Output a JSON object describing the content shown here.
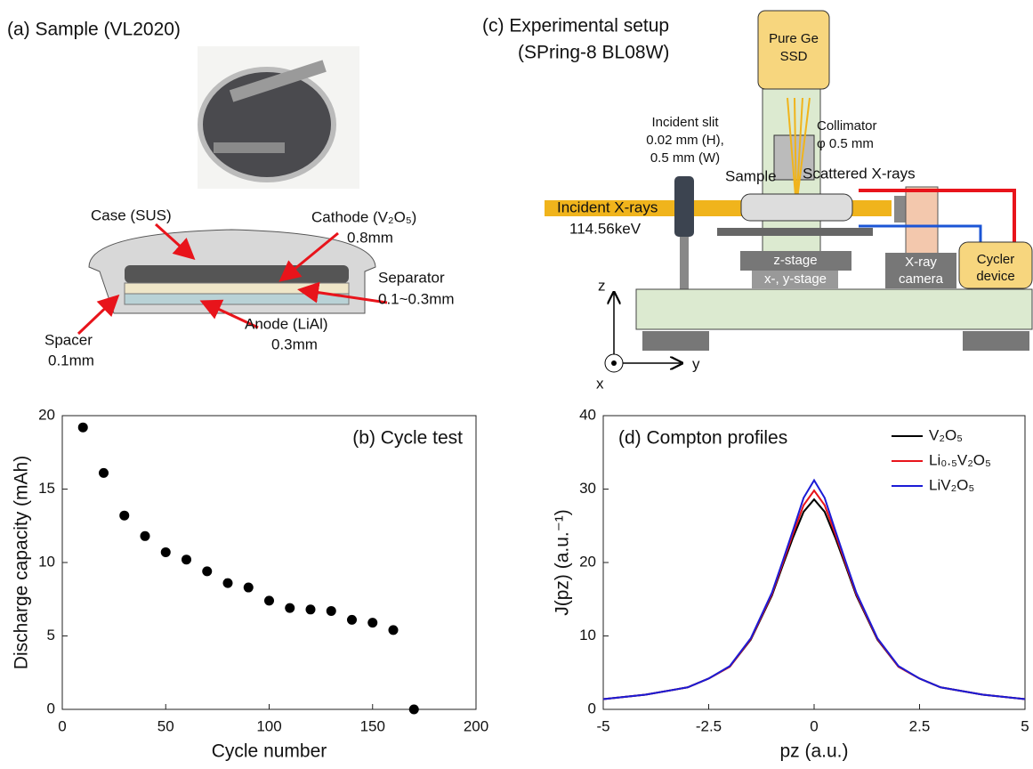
{
  "diagram_a": {
    "title": "(a) Sample (VL2020)",
    "labels": [
      "Case (SUS)",
      "Cathode (V₂O₅)",
      "0.8mm",
      "Separator",
      "0.1~0.3mm",
      "Spacer",
      "0.1mm",
      "Anode (LiAl)",
      "0.3mm"
    ]
  },
  "diagram_c": {
    "title": [
      "(c) Experimental setup",
      "(SPring-8 BL08W)"
    ],
    "labels": [
      "Pure Ge",
      "SSD",
      "Collimator",
      "φ 0.5 mm",
      "Incident slit",
      "0.02 mm (H),",
      "0.5 mm (W)",
      "Sample",
      "Scattered X-rays",
      "Incident X-rays",
      "114.56keV",
      "z-stage",
      "x-, y-stage",
      "X-ray",
      "camera",
      "Cycler",
      "device",
      "z",
      "y",
      "x"
    ]
  },
  "chart_data": [
    {
      "type": "scatter",
      "title": "(b) Cycle test",
      "x_label": "Cycle number",
      "y_label": "Discharge capacity (mAh)",
      "x": [
        10,
        20,
        30,
        40,
        50,
        60,
        70,
        80,
        90,
        100,
        110,
        120,
        130,
        140,
        150,
        160,
        170
      ],
      "values": [
        19.2,
        16.1,
        13.2,
        11.8,
        10.7,
        10.2,
        9.4,
        8.6,
        8.3,
        7.4,
        6.9,
        6.8,
        6.7,
        6.1,
        5.9,
        5.4,
        0
      ],
      "color": "#000000",
      "xlim": [
        0,
        200
      ],
      "xticks": [
        0,
        50,
        100,
        150,
        200
      ],
      "ylim": [
        0,
        20
      ],
      "yticks": [
        0,
        5,
        10,
        15,
        20
      ]
    },
    {
      "type": "line",
      "title": "(d) Compton profiles",
      "x_label": "pz (a.u.)",
      "y_label": "J(pz) (a.u.⁻¹)",
      "x": [
        -5,
        -4,
        -3,
        -2.5,
        -2,
        -1.5,
        -1,
        -0.75,
        -0.5,
        -0.25,
        0,
        0.25,
        0.5,
        0.75,
        1,
        1.5,
        2,
        2.5,
        3,
        4,
        5
      ],
      "series": [
        {
          "name": "V₂O₅",
          "color": "#000000",
          "values": [
            1.4,
            2.0,
            3.0,
            4.2,
            5.8,
            9.5,
            15.5,
            19.5,
            23.4,
            26.9,
            28.6,
            26.9,
            23.4,
            19.5,
            15.5,
            9.5,
            5.8,
            4.2,
            3.0,
            2.0,
            1.4
          ]
        },
        {
          "name": "Li₀.₅V₂O₅",
          "color": "#e8141b",
          "values": [
            1.4,
            2.0,
            3.0,
            4.2,
            5.8,
            9.6,
            15.7,
            19.8,
            23.9,
            27.8,
            29.8,
            27.8,
            23.9,
            19.8,
            15.7,
            9.6,
            5.8,
            4.2,
            3.0,
            2.0,
            1.4
          ]
        },
        {
          "name": "LiV₂O₅",
          "color": "#1b1bd6",
          "values": [
            1.4,
            2.0,
            3.0,
            4.2,
            5.9,
            9.7,
            15.9,
            20.1,
            24.4,
            28.8,
            31.2,
            28.8,
            24.4,
            20.1,
            15.9,
            9.7,
            5.9,
            4.2,
            3.0,
            2.0,
            1.4
          ]
        }
      ],
      "xlim": [
        -5,
        5
      ],
      "xticks": [
        -5,
        -2.5,
        0,
        2.5,
        5
      ],
      "ylim": [
        0,
        40
      ],
      "yticks": [
        0,
        10,
        20,
        30,
        40
      ],
      "legend": "upper-right"
    }
  ]
}
